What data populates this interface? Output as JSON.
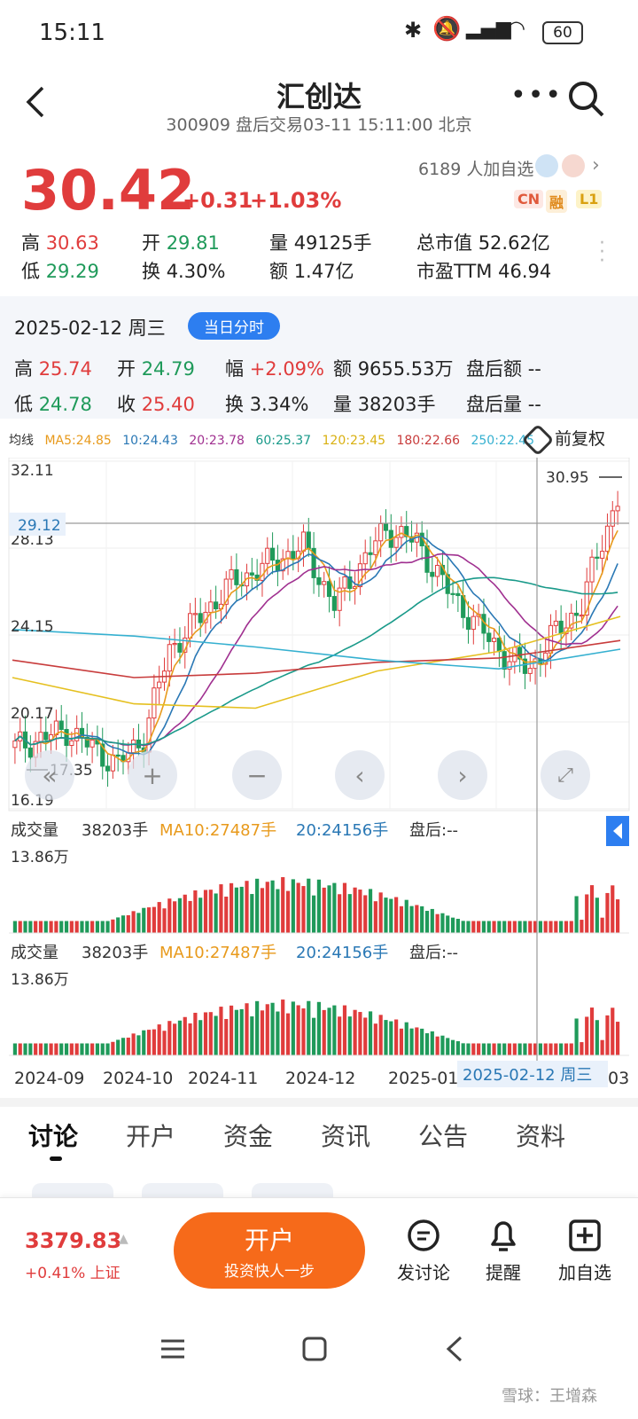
{
  "status_bar": {
    "time": "15:11",
    "battery": "60"
  },
  "header": {
    "title": "汇创达",
    "subtitle": "300909 盘后交易03-11 15:11:00 北京"
  },
  "quote": {
    "price": "30.42",
    "change": "+0.31",
    "change_pct": "+1.03%",
    "followers": "6189 人加自选",
    "badges": [
      "CN",
      "融",
      "L1"
    ],
    "rows": [
      [
        {
          "k": "高",
          "v": "30.63",
          "c": "red"
        },
        {
          "k": "开",
          "v": "29.81",
          "c": "green"
        },
        {
          "k": "量",
          "v": "49125手",
          "c": "dark"
        },
        {
          "k": "总市值",
          "v": "52.62亿",
          "c": "dark"
        }
      ],
      [
        {
          "k": "低",
          "v": "29.29",
          "c": "green"
        },
        {
          "k": "换",
          "v": "4.30%",
          "c": "dark"
        },
        {
          "k": "额",
          "v": "1.47亿",
          "c": "dark"
        },
        {
          "k": "市盈TTM",
          "v": "46.94",
          "c": "dark"
        }
      ]
    ]
  },
  "day_info": {
    "date": "2025-02-12 周三",
    "button": "当日分时",
    "rows": [
      [
        {
          "k": "高",
          "v": "25.74",
          "c": "red"
        },
        {
          "k": "开",
          "v": "24.79",
          "c": "green"
        },
        {
          "k": "幅",
          "v": "+2.09%",
          "c": "red"
        },
        {
          "k": "额",
          "v": "9655.53万",
          "c": "dark"
        },
        {
          "k": "盘后额",
          "v": "--",
          "c": "dark"
        }
      ],
      [
        {
          "k": "低",
          "v": "24.78",
          "c": "green"
        },
        {
          "k": "收",
          "v": "25.40",
          "c": "red"
        },
        {
          "k": "换",
          "v": "3.34%",
          "c": "dark"
        },
        {
          "k": "量",
          "v": "38203手",
          "c": "dark"
        },
        {
          "k": "盘后量",
          "v": "--",
          "c": "dark"
        }
      ]
    ]
  },
  "ma_legend": [
    {
      "label": "均线",
      "color": "#333333"
    },
    {
      "label": "MA5:24.85",
      "color": "#e89a1c"
    },
    {
      "label": "10:24.43",
      "color": "#2a78b5"
    },
    {
      "label": "20:23.78",
      "color": "#a03090"
    },
    {
      "label": "60:25.37",
      "color": "#1a9a8a"
    },
    {
      "label": "120:23.45",
      "color": "#e5c020"
    },
    {
      "label": "180:22.66",
      "color": "#c83c3c"
    },
    {
      "label": "250:22.45",
      "color": "#35b0d0"
    }
  ],
  "adjust_label": "前复权",
  "price_axis": {
    "labels": [
      "32.11",
      "28.13",
      "24.15",
      "20.17",
      "16.19"
    ],
    "crosshair": "29.12",
    "high_marker": "30.95",
    "low_marker": "17.35"
  },
  "colors": {
    "up": "#e03c3c",
    "down": "#1f9a5a",
    "ma5": "#e89a1c",
    "ma10": "#2a78b5",
    "ma20": "#a03090",
    "ma60": "#1a9a8a",
    "ma120": "#e5c020",
    "ma180": "#c83c3c",
    "ma250": "#35b0d0"
  },
  "volume": {
    "label": "成交量",
    "value": "38203手",
    "ma10": "MA10:27487手",
    "ma20": "20:24156手",
    "after": "盘后:--",
    "max": "13.86万"
  },
  "date_axis": [
    "2024-09",
    "2024-10",
    "2024-11",
    "2024-12",
    "2025-01",
    "03"
  ],
  "crosshair_date": "2025-02-12 周三",
  "tabs": [
    "讨论",
    "开户",
    "资金",
    "资讯",
    "公告",
    "资料"
  ],
  "bottom": {
    "index_value": "3379.83",
    "index_change": "+0.41% 上证",
    "open_title": "开户",
    "open_sub": "投资快人一步",
    "actions": [
      "发讨论",
      "提醒",
      "加自选"
    ]
  },
  "watermark": "雪球：王增森"
}
